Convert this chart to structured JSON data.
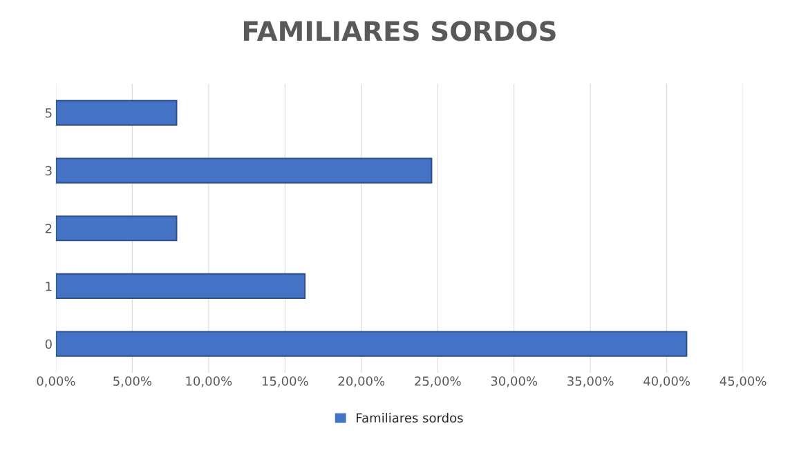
{
  "chart_data": {
    "type": "bar",
    "orientation": "horizontal",
    "title": "FAMILIARES SORDOS",
    "categories": [
      "5",
      "3",
      "2",
      "1",
      "0"
    ],
    "series": [
      {
        "name": "Familiares sordos",
        "color": "#4472c4",
        "values": [
          7.9,
          24.6,
          7.9,
          16.3,
          41.3
        ]
      }
    ],
    "xlim": [
      0,
      45
    ],
    "xticks": [
      {
        "value": 0,
        "label": "0,00%"
      },
      {
        "value": 5,
        "label": "5,00%"
      },
      {
        "value": 10,
        "label": "10,00%"
      },
      {
        "value": 15,
        "label": "15,00%"
      },
      {
        "value": 20,
        "label": "20,00%"
      },
      {
        "value": 25,
        "label": "25,00%"
      },
      {
        "value": 30,
        "label": "30,00%"
      },
      {
        "value": 35,
        "label": "35,00%"
      },
      {
        "value": 40,
        "label": "40,00%"
      },
      {
        "value": 45,
        "label": "45,00%"
      }
    ],
    "grid": "x",
    "legend": "bottom"
  }
}
